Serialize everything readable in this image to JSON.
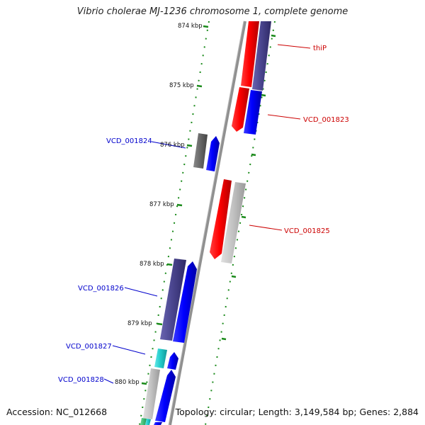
{
  "title": "Vibrio cholerae MJ-1236 chromosome 1, complete genome",
  "footer": {
    "accession": "Accession: NC_012668",
    "stats": "Topology: circular; Length: 3,149,584 bp; Genes: 2,884"
  },
  "scale_labels": [
    "874 kbp",
    "875 kbp",
    "876 kbp",
    "877 kbp",
    "878 kbp",
    "879 kbp",
    "880 kbp"
  ],
  "gene_labels": [
    {
      "id": "thiP",
      "text": "thiP",
      "color": "#cc0000"
    },
    {
      "id": "vcd-001823",
      "text": "VCD_001823",
      "color": "#cc0000"
    },
    {
      "id": "vcd-001824",
      "text": "VCD_001824",
      "color": "#0000cc"
    },
    {
      "id": "vcd-001825",
      "text": "VCD_001825",
      "color": "#cc0000"
    },
    {
      "id": "vcd-001826",
      "text": "VCD_001826",
      "color": "#0000cc"
    },
    {
      "id": "vcd-001827",
      "text": "VCD_001827",
      "color": "#0000cc"
    },
    {
      "id": "vcd-001828",
      "text": "VCD_001828",
      "color": "#0000cc"
    }
  ],
  "colors": {
    "backbone": "#808080",
    "tick_green": "#1a8a1a",
    "forward_red": "#ff0000",
    "navy": "#4b4690",
    "blue": "#0000ff",
    "grey_dark": "#6e6e6e",
    "grey_light": "#c4c4c4",
    "cyan": "#22cccc"
  }
}
